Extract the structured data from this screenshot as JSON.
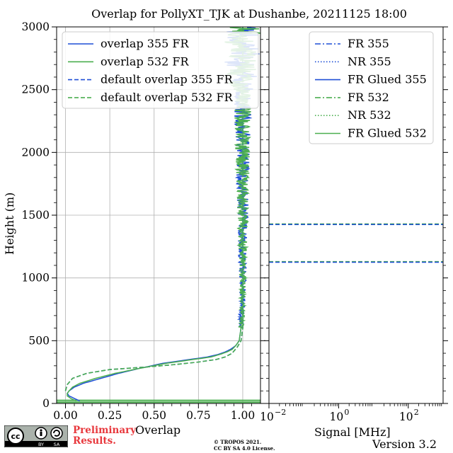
{
  "title": "Overlap for PollyXT_TJK at Dushanbe, 20211125 18:00",
  "y_axis_label": "Height (m)",
  "left_panel_xlabel": "Overlap",
  "right_panel_xlabel": "Signal [MHz]",
  "preliminary_line1": "Preliminary",
  "preliminary_line2": "Results.",
  "license_line1": "© TROPOS 2021.",
  "license_line2": "CC BY SA 4.0 License.",
  "cc_badge": {
    "main": "cc",
    "by": "BY",
    "sa": "SA"
  },
  "version": "Version 3.2",
  "colors": {
    "c355": "#1f4fd6",
    "c532": "#4caf50"
  },
  "chart_data": [
    {
      "type": "line",
      "panel": "left",
      "xlabel": "Overlap",
      "ylabel": "Height (m)",
      "xlim": [
        -0.05,
        1.1
      ],
      "ylim": [
        0,
        3000
      ],
      "x_ticks": [
        0.0,
        0.25,
        0.5,
        0.75,
        1.0
      ],
      "x_tick_labels": [
        "0.00",
        "0.25",
        "0.50",
        "0.75",
        "1.00"
      ],
      "y_ticks": [
        0,
        500,
        1000,
        1500,
        2000,
        2500,
        3000
      ],
      "y_tick_labels": [
        "0",
        "500",
        "1000",
        "1500",
        "2000",
        "2500",
        "3000"
      ],
      "grid": true,
      "legend_position": "top-right",
      "series": [
        {
          "name": "overlap 355 FR",
          "color": "#1f4fd6",
          "dash": "solid",
          "noise": true,
          "points": [
            [
              0.08,
              20
            ],
            [
              0.05,
              40
            ],
            [
              0.02,
              60
            ],
            [
              0.01,
              80
            ],
            [
              0.02,
              100
            ],
            [
              0.05,
              130
            ],
            [
              0.1,
              160
            ],
            [
              0.2,
              200
            ],
            [
              0.3,
              240
            ],
            [
              0.42,
              280
            ],
            [
              0.55,
              320
            ],
            [
              0.7,
              350
            ],
            [
              0.8,
              370
            ],
            [
              0.86,
              390
            ],
            [
              0.9,
              410
            ],
            [
              0.93,
              430
            ],
            [
              0.96,
              460
            ],
            [
              0.98,
              500
            ],
            [
              0.99,
              600
            ],
            [
              0.99,
              700
            ],
            [
              1.0,
              800
            ],
            [
              1.0,
              1000
            ],
            [
              1.0,
              1500
            ],
            [
              1.0,
              2000
            ],
            [
              1.0,
              2500
            ],
            [
              1.0,
              3000
            ]
          ]
        },
        {
          "name": "overlap 532 FR",
          "color": "#4caf50",
          "dash": "solid",
          "noise": true,
          "points": [
            [
              0.06,
              20
            ],
            [
              0.03,
              40
            ],
            [
              0.01,
              60
            ],
            [
              0.01,
              80
            ],
            [
              0.02,
              100
            ],
            [
              0.04,
              130
            ],
            [
              0.08,
              160
            ],
            [
              0.17,
              200
            ],
            [
              0.28,
              240
            ],
            [
              0.42,
              280
            ],
            [
              0.57,
              320
            ],
            [
              0.72,
              350
            ],
            [
              0.82,
              370
            ],
            [
              0.87,
              390
            ],
            [
              0.91,
              410
            ],
            [
              0.94,
              430
            ],
            [
              0.96,
              460
            ],
            [
              0.98,
              500
            ],
            [
              0.99,
              600
            ],
            [
              1.0,
              700
            ],
            [
              1.0,
              800
            ],
            [
              1.0,
              1000
            ],
            [
              1.0,
              1500
            ],
            [
              1.0,
              2000
            ],
            [
              1.0,
              2500
            ],
            [
              1.0,
              3000
            ]
          ]
        },
        {
          "name": "default overlap 355 FR",
          "color": "#1f4fd6",
          "dash": "dashed",
          "noise": false,
          "points": [
            [
              0.0,
              100
            ],
            [
              0.01,
              150
            ],
            [
              0.04,
              200
            ],
            [
              0.12,
              240
            ],
            [
              0.25,
              270
            ],
            [
              0.45,
              290
            ],
            [
              0.62,
              310
            ],
            [
              0.75,
              330
            ],
            [
              0.85,
              350
            ],
            [
              0.9,
              370
            ],
            [
              0.94,
              400
            ],
            [
              0.97,
              450
            ],
            [
              0.99,
              500
            ],
            [
              1.0,
              600
            ],
            [
              1.0,
              800
            ],
            [
              1.0,
              1000
            ],
            [
              1.0,
              1500
            ],
            [
              1.0,
              2000
            ],
            [
              1.0,
              2500
            ],
            [
              1.0,
              3000
            ]
          ]
        },
        {
          "name": "default overlap 532 FR",
          "color": "#4caf50",
          "dash": "dashed",
          "noise": false,
          "points": [
            [
              0.0,
              100
            ],
            [
              0.01,
              150
            ],
            [
              0.04,
              200
            ],
            [
              0.12,
              240
            ],
            [
              0.25,
              270
            ],
            [
              0.45,
              290
            ],
            [
              0.62,
              310
            ],
            [
              0.75,
              330
            ],
            [
              0.85,
              350
            ],
            [
              0.9,
              370
            ],
            [
              0.94,
              400
            ],
            [
              0.97,
              450
            ],
            [
              0.99,
              500
            ],
            [
              1.0,
              600
            ],
            [
              1.0,
              800
            ],
            [
              1.0,
              1000
            ],
            [
              1.0,
              1500
            ],
            [
              1.0,
              2000
            ],
            [
              1.0,
              2500
            ],
            [
              1.0,
              3000
            ]
          ]
        }
      ],
      "horizontal_lines": [
        {
          "y": 10,
          "color": "#4caf50"
        },
        {
          "y": 25,
          "color": "#4caf50"
        }
      ]
    },
    {
      "type": "line",
      "panel": "right",
      "xlabel": "Signal [MHz]",
      "xscale": "log",
      "xlim": [
        0.01,
        1000
      ],
      "ylim": [
        0,
        3000
      ],
      "x_ticks": [
        0.01,
        1,
        100
      ],
      "x_tick_labels": [
        "10",
        "10",
        "10"
      ],
      "x_tick_exponents": [
        "−2",
        "0",
        "2"
      ],
      "grid": false,
      "legend_position": "top-right",
      "series": [
        {
          "name": "FR 355",
          "color": "#1f4fd6",
          "dash": "dashdot"
        },
        {
          "name": "NR 355",
          "color": "#1f4fd6",
          "dash": "dotted"
        },
        {
          "name": "FR Glued 355",
          "color": "#1f4fd6",
          "dash": "solid"
        },
        {
          "name": "FR 532",
          "color": "#4caf50",
          "dash": "dashdot"
        },
        {
          "name": "NR 532",
          "color": "#4caf50",
          "dash": "dotted"
        },
        {
          "name": "FR Glued 532",
          "color": "#4caf50",
          "dash": "solid"
        }
      ],
      "horizontal_lines": [
        {
          "y": 1130,
          "color": "#4caf50",
          "dash": "dashed"
        },
        {
          "y": 1125,
          "color": "#1f4fd6",
          "dash": "dashed"
        },
        {
          "y": 1430,
          "color": "#4caf50",
          "dash": "dashed"
        },
        {
          "y": 1425,
          "color": "#1f4fd6",
          "dash": "dashed"
        }
      ]
    }
  ]
}
